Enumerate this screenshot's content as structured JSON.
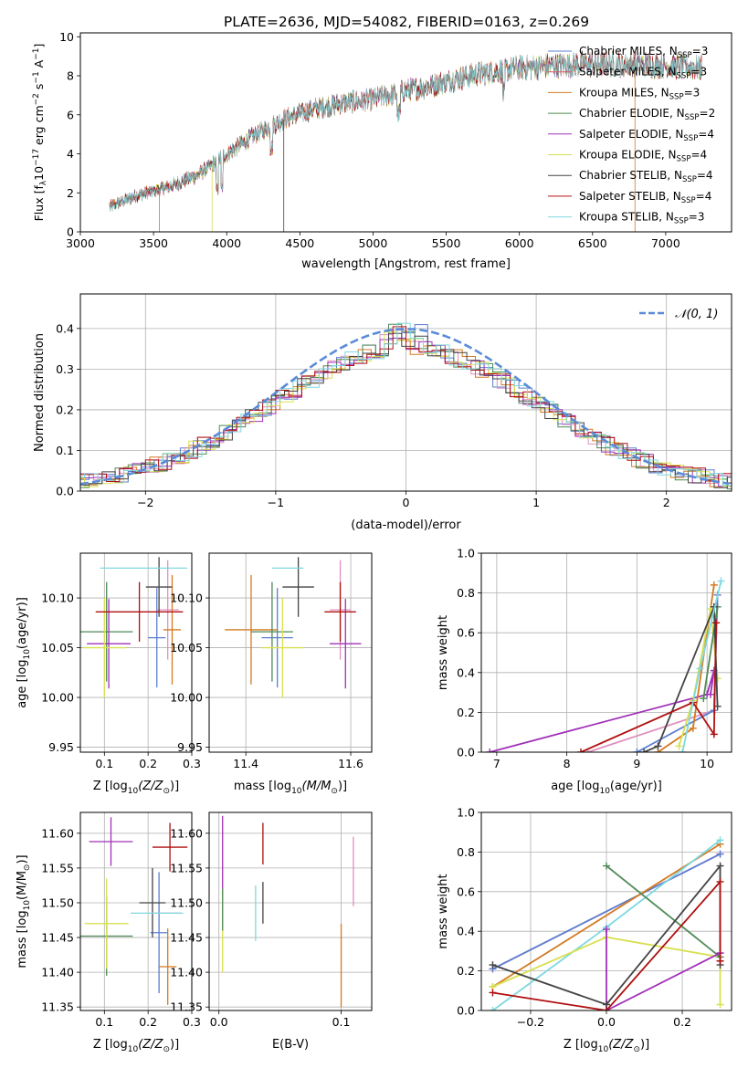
{
  "figure_title": "PLATE=2636, MJD=54082, FIBERID=0163, z=0.269",
  "colors": {
    "chabrier_miles": "#5b7fd0",
    "salpeter_miles": "#e05560",
    "kroupa_miles": "#d47a20",
    "chabrier_elodie": "#4f8a55",
    "salpeter_elodie": "#a030b8",
    "kroupa_elodie": "#d8e050",
    "chabrier_stelib": "#444444",
    "salpeter_stelib": "#b01010",
    "kroupa_stelib": "#7fd8e0",
    "pink": "#e090c0",
    "normal": "#5b8bd8"
  },
  "chart_data": [
    {
      "id": "spectrum",
      "type": "line",
      "xlabel": "wavelength [Angstrom, rest frame]",
      "ylabel": "Flux [f",
      "ylabel_sub": "λ",
      "ylabel_rest": "10",
      "ylabel_exp": "−17",
      "ylabel_tail": " erg cm",
      "ylabel_exp2": "−2",
      "ylabel_tail2": " s",
      "ylabel_exp3": "−1",
      "ylabel_tail3": " A",
      "ylabel_exp4": "−1",
      "ylabel_end": "]",
      "xlim": [
        3000,
        7450
      ],
      "ylim": [
        0,
        10.2
      ],
      "xticks": [
        3000,
        3500,
        4000,
        4500,
        5000,
        5500,
        6000,
        6500,
        7000
      ],
      "yticks": [
        0,
        2,
        4,
        6,
        8,
        10
      ],
      "continuum_x": [
        3200,
        3400,
        3600,
        3800,
        4000,
        4200,
        4400,
        4600,
        4800,
        5000,
        5200,
        5400,
        5600,
        5800,
        6000,
        6200,
        6400,
        6600,
        6800,
        7000,
        7250
      ],
      "continuum_y": [
        1.3,
        1.9,
        2.3,
        2.9,
        4.0,
        5.0,
        5.8,
        6.3,
        6.6,
        6.8,
        7.2,
        7.5,
        7.9,
        8.2,
        8.4,
        8.5,
        8.6,
        8.6,
        8.6,
        8.5,
        8.4
      ],
      "legend": [
        {
          "label": "Chabrier MILES, N",
          "sub": "SSP",
          "tail": "=3",
          "color": "#5b7fd0"
        },
        {
          "label": "Salpeter MILES, N",
          "sub": "SSP",
          "tail": "=3",
          "color": "#e05560"
        },
        {
          "label": "Kroupa MILES, N",
          "sub": "SSP",
          "tail": "=3",
          "color": "#d47a20"
        },
        {
          "label": "Chabrier ELODIE, N",
          "sub": "SSP",
          "tail": "=2",
          "color": "#4f8a55"
        },
        {
          "label": "Salpeter ELODIE, N",
          "sub": "SSP",
          "tail": "=4",
          "color": "#a030b8"
        },
        {
          "label": "Kroupa ELODIE, N",
          "sub": "SSP",
          "tail": "=4",
          "color": "#d8e050"
        },
        {
          "label": "Chabrier STELIB, N",
          "sub": "SSP",
          "tail": "=4",
          "color": "#444444"
        },
        {
          "label": "Salpeter STELIB, N",
          "sub": "SSP",
          "tail": "=4",
          "color": "#b01010"
        },
        {
          "label": "Kroupa STELIB, N",
          "sub": "SSP",
          "tail": "=3",
          "color": "#7fd8e0"
        }
      ],
      "legend_placement": "top-right"
    },
    {
      "id": "residuals",
      "type": "histogram",
      "xlabel": "(data-model)/error",
      "ylabel": "Normed distribution",
      "xlim": [
        -2.5,
        2.5
      ],
      "ylim": [
        0,
        0.485
      ],
      "xticks": [
        -2,
        -1,
        0,
        1,
        2
      ],
      "xtick_labels": [
        "−2",
        "−1",
        "0",
        "1",
        "2"
      ],
      "yticks": [
        0.0,
        0.1,
        0.2,
        0.3,
        0.4
      ],
      "ytick_labels": [
        "0.0",
        "0.1",
        "0.2",
        "0.3",
        "0.4"
      ],
      "grid": true,
      "bin_width": 0.1,
      "legend": {
        "label": "𝒩(0, 1)",
        "color": "#5b8bd8",
        "style": "dashed"
      },
      "legend_placement": "top-right"
    },
    {
      "id": "age_vs_Z",
      "type": "errorbar",
      "xlabel": "Z [log",
      "xlabel_sub": "10",
      "xlabel_tail": "(Z/Z",
      "xlabel_sun": "⊙",
      "xlabel_end": ")]",
      "ylabel": "age  [log",
      "ylabel_sub": "10",
      "ylabel_tail": "(age/yr)]",
      "xlim": [
        0.045,
        0.3
      ],
      "ylim": [
        9.945,
        10.145
      ],
      "xticks": [
        0.1,
        0.2,
        0.3
      ],
      "yticks": [
        9.95,
        10.0,
        10.05,
        10.1
      ],
      "ytick_labels": [
        "9.95",
        "10.00",
        "10.05",
        "10.10"
      ],
      "grid": true,
      "points": [
        {
          "x": 0.22,
          "xerr": 0.02,
          "y": 10.06,
          "yerr": 0.05,
          "color": "#5b7fd0"
        },
        {
          "x": 0.245,
          "xerr": 0.025,
          "y": 10.088,
          "yerr": 0.05,
          "color": "#e090c0"
        },
        {
          "x": 0.255,
          "xerr": 0.02,
          "y": 10.068,
          "yerr": 0.055,
          "color": "#d47a20"
        },
        {
          "x": 0.105,
          "xerr": 0.06,
          "y": 10.066,
          "yerr": 0.05,
          "color": "#4f8a55"
        },
        {
          "x": 0.11,
          "xerr": 0.05,
          "y": 10.054,
          "yerr": 0.045,
          "color": "#a030b8"
        },
        {
          "x": 0.1,
          "xerr": 0.05,
          "y": 10.05,
          "yerr": 0.05,
          "color": "#d8e050"
        },
        {
          "x": 0.225,
          "xerr": 0.03,
          "y": 10.111,
          "yerr": 0.03,
          "color": "#444444"
        },
        {
          "x": 0.18,
          "xerr": 0.1,
          "y": 10.086,
          "yerr": 0.03,
          "color": "#b01010"
        },
        {
          "x": 0.19,
          "xerr": 0.1,
          "y": 10.13,
          "yerr": 0.0,
          "color": "#7fd8e0"
        }
      ]
    },
    {
      "id": "age_vs_mass",
      "type": "errorbar",
      "xlabel": "mass [log",
      "xlabel_sub": "10",
      "xlabel_tail": "(M/M",
      "xlabel_sun": "⊙",
      "xlabel_end": ")]",
      "xlim": [
        11.33,
        11.64
      ],
      "ylim": [
        9.945,
        10.145
      ],
      "xticks": [
        11.4,
        11.6
      ],
      "yticks": [
        9.95,
        10.0,
        10.05,
        10.1
      ],
      "ytick_labels": [
        "9.95",
        "10.00",
        "10.05",
        "10.10"
      ],
      "grid": true,
      "points": [
        {
          "x": 11.46,
          "xerr": 0.03,
          "y": 10.06,
          "yerr": 0.05,
          "color": "#5b7fd0"
        },
        {
          "x": 11.58,
          "xerr": 0.02,
          "y": 10.088,
          "yerr": 0.05,
          "color": "#e090c0"
        },
        {
          "x": 11.41,
          "xerr": 0.05,
          "y": 10.068,
          "yerr": 0.055,
          "color": "#d47a20"
        },
        {
          "x": 11.45,
          "xerr": 0.04,
          "y": 10.066,
          "yerr": 0.05,
          "color": "#4f8a55"
        },
        {
          "x": 11.59,
          "xerr": 0.03,
          "y": 10.054,
          "yerr": 0.045,
          "color": "#a030b8"
        },
        {
          "x": 11.47,
          "xerr": 0.04,
          "y": 10.05,
          "yerr": 0.05,
          "color": "#d8e050"
        },
        {
          "x": 11.5,
          "xerr": 0.03,
          "y": 10.111,
          "yerr": 0.03,
          "color": "#444444"
        },
        {
          "x": 11.58,
          "xerr": 0.03,
          "y": 10.086,
          "yerr": 0.03,
          "color": "#b01010"
        },
        {
          "x": 11.48,
          "xerr": 0.03,
          "y": 10.13,
          "yerr": 0.0,
          "color": "#7fd8e0"
        }
      ]
    },
    {
      "id": "massweight_vs_age",
      "type": "line",
      "xlabel": "age  [log",
      "xlabel_sub": "10",
      "xlabel_tail": "(age/yr)]",
      "ylabel": "mass weight",
      "xlim": [
        6.78,
        10.35
      ],
      "ylim": [
        0,
        1.0
      ],
      "xticks": [
        7,
        8,
        9,
        10
      ],
      "yticks": [
        0.0,
        0.2,
        0.4,
        0.6,
        0.8,
        1.0
      ],
      "ytick_labels": [
        "0.0",
        "0.2",
        "0.4",
        "0.6",
        "0.8",
        "1.0"
      ],
      "grid": true,
      "series": [
        {
          "color": "#a030b8",
          "x": [
            6.9,
            10.0,
            10.1,
            10.05
          ],
          "y": [
            0.0,
            0.29,
            0.41,
            0.29
          ]
        },
        {
          "color": "#e090c0",
          "x": [
            8.3,
            10.1,
            10.15
          ],
          "y": [
            0.0,
            0.21,
            0.79
          ]
        },
        {
          "color": "#5b7fd0",
          "x": [
            9.0,
            10.1,
            10.15
          ],
          "y": [
            0.0,
            0.21,
            0.79
          ]
        },
        {
          "color": "#d47a20",
          "x": [
            9.3,
            9.8,
            10.1
          ],
          "y": [
            0.0,
            0.12,
            0.84
          ]
        },
        {
          "color": "#d8e050",
          "x": [
            9.6,
            9.8,
            10.05,
            10.15
          ],
          "y": [
            0.03,
            0.26,
            0.72,
            0.37
          ]
        },
        {
          "color": "#4f8a55",
          "x": [
            9.95,
            10.15
          ],
          "y": [
            0.27,
            0.73
          ]
        },
        {
          "color": "#444444",
          "x": [
            9.1,
            9.3,
            10.1,
            10.15,
            10.1
          ],
          "y": [
            0.0,
            0.03,
            0.73,
            0.23,
            0.73
          ]
        },
        {
          "color": "#b01010",
          "x": [
            8.2,
            9.8,
            10.1,
            10.13
          ],
          "y": [
            0.0,
            0.25,
            0.09,
            0.65
          ]
        },
        {
          "color": "#7fd8e0",
          "x": [
            9.65,
            9.9,
            10.2
          ],
          "y": [
            0.0,
            0.42,
            0.86
          ]
        }
      ]
    },
    {
      "id": "mass_vs_Z",
      "type": "errorbar",
      "xlabel": "Z [log",
      "xlabel_sub": "10",
      "xlabel_tail": "(Z/Z",
      "xlabel_sun": "⊙",
      "xlabel_end": ")]",
      "ylabel": "mass [log",
      "ylabel_sub": "10",
      "ylabel_tail": "(M/M",
      "ylabel_sun": "⊙",
      "ylabel_end": ")]",
      "xlim": [
        0.045,
        0.3
      ],
      "ylim": [
        11.345,
        11.63
      ],
      "xticks": [
        0.1,
        0.2,
        0.3
      ],
      "yticks": [
        11.35,
        11.4,
        11.45,
        11.5,
        11.55,
        11.6
      ],
      "ytick_labels": [
        "11.35",
        "11.40",
        "11.45",
        "11.50",
        "11.55",
        "11.60"
      ],
      "grid": true,
      "points": [
        {
          "x": 0.225,
          "xerr": 0.02,
          "y": 11.457,
          "yerr": 0.087,
          "color": "#5b7fd0"
        },
        {
          "x": 0.245,
          "xerr": 0.03,
          "y": 11.485,
          "yerr": 0.0,
          "color": "#e090c0"
        },
        {
          "x": 0.245,
          "xerr": 0.02,
          "y": 11.408,
          "yerr": 0.055,
          "color": "#d47a20"
        },
        {
          "x": 0.105,
          "xerr": 0.06,
          "y": 11.452,
          "yerr": 0.057,
          "color": "#4f8a55"
        },
        {
          "x": 0.115,
          "xerr": 0.05,
          "y": 11.588,
          "yerr": 0.035,
          "color": "#a030b8"
        },
        {
          "x": 0.105,
          "xerr": 0.05,
          "y": 11.47,
          "yerr": 0.065,
          "color": "#d8e050"
        },
        {
          "x": 0.21,
          "xerr": 0.03,
          "y": 11.5,
          "yerr": 0.05,
          "color": "#444444"
        },
        {
          "x": 0.25,
          "xerr": 0.04,
          "y": 11.58,
          "yerr": 0.035,
          "color": "#b01010"
        },
        {
          "x": 0.22,
          "xerr": 0.06,
          "y": 11.485,
          "yerr": 0.0,
          "color": "#7fd8e0"
        }
      ]
    },
    {
      "id": "mass_vs_ebv",
      "type": "errorbar",
      "xlabel": "E(B-V)",
      "xlim": [
        -0.008,
        0.125
      ],
      "ylim": [
        11.345,
        11.63
      ],
      "xticks": [
        0.0,
        0.1
      ],
      "xtick_labels": [
        "0.0",
        "0.1"
      ],
      "yticks": [
        11.35,
        11.4,
        11.45,
        11.5,
        11.55,
        11.6
      ],
      "ytick_labels": [
        "11.35",
        "11.40",
        "11.45",
        "11.50",
        "11.55",
        "11.60"
      ],
      "grid": true,
      "points": [
        {
          "x": 0.003,
          "xerr": 0.0,
          "y": 11.57,
          "yerr": 0.055,
          "color": "#a030b8"
        },
        {
          "x": 0.003,
          "xerr": 0.0,
          "y": 11.46,
          "yerr": 0.06,
          "color": "#d8e050"
        },
        {
          "x": 0.003,
          "xerr": 0.0,
          "y": 11.49,
          "yerr": 0.03,
          "color": "#4f8a55"
        },
        {
          "x": 0.03,
          "xerr": 0.0,
          "y": 11.485,
          "yerr": 0.04,
          "color": "#7fd8e0"
        },
        {
          "x": 0.036,
          "xerr": 0.0,
          "y": 11.5,
          "yerr": 0.03,
          "color": "#444444"
        },
        {
          "x": 0.036,
          "xerr": 0.0,
          "y": 11.585,
          "yerr": 0.03,
          "color": "#b01010"
        },
        {
          "x": 0.1,
          "xerr": 0.0,
          "y": 11.41,
          "yerr": 0.06,
          "color": "#d47a20"
        },
        {
          "x": 0.11,
          "xerr": 0.0,
          "y": 11.545,
          "yerr": 0.05,
          "color": "#e090c0"
        }
      ]
    },
    {
      "id": "massweight_vs_Z",
      "type": "line",
      "xlabel": "Z [log",
      "xlabel_sub": "10",
      "xlabel_tail": "(Z/Z",
      "xlabel_sun": "⊙",
      "xlabel_end": ")]",
      "ylabel": "mass weight",
      "xlim": [
        -0.33,
        0.33
      ],
      "ylim": [
        0,
        1.0
      ],
      "xticks": [
        -0.2,
        0.0,
        0.2
      ],
      "xtick_labels": [
        "−0.2",
        "0.0",
        "0.2"
      ],
      "yticks": [
        0.0,
        0.2,
        0.4,
        0.6,
        0.8,
        1.0
      ],
      "ytick_labels": [
        "0.0",
        "0.2",
        "0.4",
        "0.6",
        "0.8",
        "1.0"
      ],
      "grid": true,
      "series": [
        {
          "color": "#e090c0",
          "x": [
            -0.3,
            0.3
          ],
          "y": [
            0.21,
            0.79
          ]
        },
        {
          "color": "#5b7fd0",
          "x": [
            -0.3,
            0.3
          ],
          "y": [
            0.21,
            0.79
          ]
        },
        {
          "color": "#d47a20",
          "x": [
            -0.3,
            0.3
          ],
          "y": [
            0.12,
            0.84
          ]
        },
        {
          "color": "#7fd8e0",
          "x": [
            -0.3,
            0.0,
            0.3
          ],
          "y": [
            0.0,
            0.42,
            0.86
          ]
        },
        {
          "color": "#d8e050",
          "x": [
            -0.3,
            0.0,
            0.3,
            0.3
          ],
          "y": [
            0.12,
            0.37,
            0.27,
            0.03
          ]
        },
        {
          "color": "#4f8a55",
          "x": [
            0.0,
            0.3
          ],
          "y": [
            0.73,
            0.27
          ]
        },
        {
          "color": "#a030b8",
          "x": [
            0.0,
            0.0,
            0.3,
            0.3
          ],
          "y": [
            0.41,
            0.0,
            0.29,
            0.29
          ]
        },
        {
          "color": "#444444",
          "x": [
            -0.3,
            0.0,
            0.3,
            0.3
          ],
          "y": [
            0.23,
            0.03,
            0.73,
            0.23
          ]
        },
        {
          "color": "#b01010",
          "x": [
            -0.3,
            0.0,
            0.3,
            0.3
          ],
          "y": [
            0.09,
            0.0,
            0.65,
            0.25
          ]
        }
      ]
    }
  ]
}
